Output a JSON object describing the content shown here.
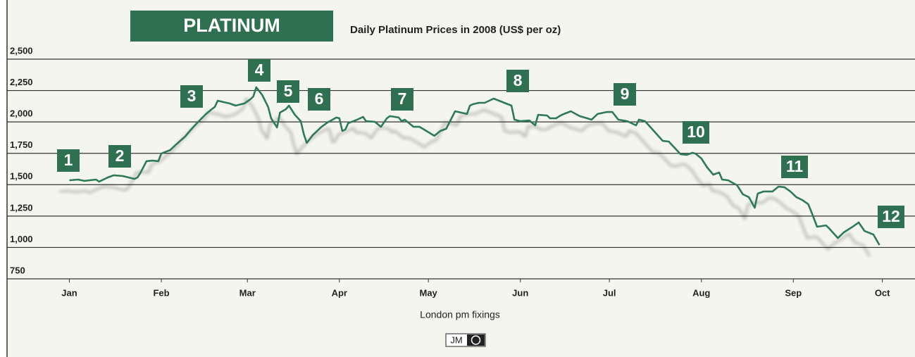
{
  "chart_data": {
    "type": "line",
    "title": "PLATINUM",
    "subtitle": "Daily Platinum Prices in 2008 (US$ per oz)",
    "x_label": "London pm fixings",
    "logo": "JM",
    "annotations": [
      "1",
      "2",
      "3",
      "4",
      "5",
      "6",
      "7",
      "8",
      "9",
      "10",
      "11",
      "12"
    ],
    "xlim": [
      -21,
      285
    ],
    "xticks": [
      {
        "value": 0,
        "label": "Jan"
      },
      {
        "value": 31,
        "label": "Feb"
      },
      {
        "value": 60,
        "label": "Mar"
      },
      {
        "value": 91,
        "label": "Apr"
      },
      {
        "value": 121,
        "label": "May"
      },
      {
        "value": 152,
        "label": "Jun"
      },
      {
        "value": 182,
        "label": "Jul"
      },
      {
        "value": 213,
        "label": "Aug"
      },
      {
        "value": 244,
        "label": "Sep"
      },
      {
        "value": 274,
        "label": "Oct"
      }
    ],
    "ylim": [
      750,
      2500
    ],
    "yticks": [
      {
        "value": 750,
        "label": "750"
      },
      {
        "value": 1000,
        "label": "1,000"
      },
      {
        "value": 1250,
        "label": "1,250"
      },
      {
        "value": 1500,
        "label": "1,500"
      },
      {
        "value": 1750,
        "label": "1,750"
      },
      {
        "value": 2000,
        "label": "2,000"
      },
      {
        "value": 2250,
        "label": "2,250"
      },
      {
        "value": 2500,
        "label": "2,500"
      }
    ],
    "grid": true,
    "series": [
      {
        "name": "Platinum",
        "color": "#2f7a54",
        "x": [
          0,
          3,
          5,
          9,
          10,
          13,
          15,
          18,
          22,
          23,
          24,
          26,
          28,
          30,
          31,
          34,
          36,
          39,
          41,
          43,
          46,
          48,
          49,
          50,
          52,
          54,
          56,
          59,
          61,
          62,
          63,
          65,
          67,
          68,
          70,
          71,
          73,
          74,
          76,
          78,
          79,
          80,
          82,
          85,
          87,
          90,
          91,
          92,
          93,
          94,
          97,
          99,
          100,
          103,
          105,
          107,
          108,
          111,
          112,
          113,
          116,
          118,
          120,
          123,
          125,
          127,
          130,
          132,
          134,
          135,
          136,
          138,
          140,
          143,
          146,
          149,
          150,
          152,
          155,
          157,
          158,
          161,
          162,
          164,
          166,
          169,
          172,
          176,
          178,
          181,
          183,
          185,
          188,
          191,
          192,
          194,
          197,
          200,
          202,
          204,
          206,
          208,
          210,
          211,
          213,
          215,
          217,
          219,
          220,
          222,
          225,
          227,
          229,
          231,
          232,
          234,
          237,
          239,
          241,
          243,
          245,
          247,
          249,
          250,
          252,
          255,
          256,
          259,
          261,
          264,
          266,
          268,
          271,
          273
        ],
        "values": [
          1535,
          1541,
          1530,
          1541,
          1524,
          1558,
          1575,
          1569,
          1546,
          1558,
          1597,
          1687,
          1692,
          1687,
          1748,
          1776,
          1821,
          1883,
          1939,
          1990,
          2062,
          2102,
          2119,
          2169,
          2158,
          2147,
          2130,
          2147,
          2180,
          2203,
          2276,
          2214,
          2119,
          2029,
          1956,
          2074,
          2102,
          2130,
          2057,
          2006,
          1905,
          1833,
          1894,
          1961,
          1995,
          2035,
          2029,
          1928,
          1939,
          1990,
          2018,
          2040,
          2006,
          2001,
          1961,
          2029,
          2046,
          2035,
          2006,
          2018,
          1961,
          1961,
          1933,
          1889,
          1928,
          1945,
          2085,
          2074,
          2063,
          2130,
          2141,
          2152,
          2152,
          2186,
          2158,
          2130,
          2018,
          2006,
          2012,
          1973,
          2057,
          2051,
          2029,
          2029,
          2057,
          2085,
          2046,
          2018,
          2063,
          2079,
          2079,
          2018,
          2006,
          1973,
          2018,
          2006,
          1928,
          1849,
          1844,
          1793,
          1743,
          1737,
          1754,
          1748,
          1709,
          1636,
          1580,
          1597,
          1541,
          1535,
          1496,
          1423,
          1401,
          1316,
          1429,
          1446,
          1446,
          1485,
          1480,
          1446,
          1401,
          1378,
          1345,
          1288,
          1165,
          1176,
          1154,
          1075,
          1120,
          1165,
          1199,
          1131,
          1103,
          1019
        ]
      }
    ]
  }
}
